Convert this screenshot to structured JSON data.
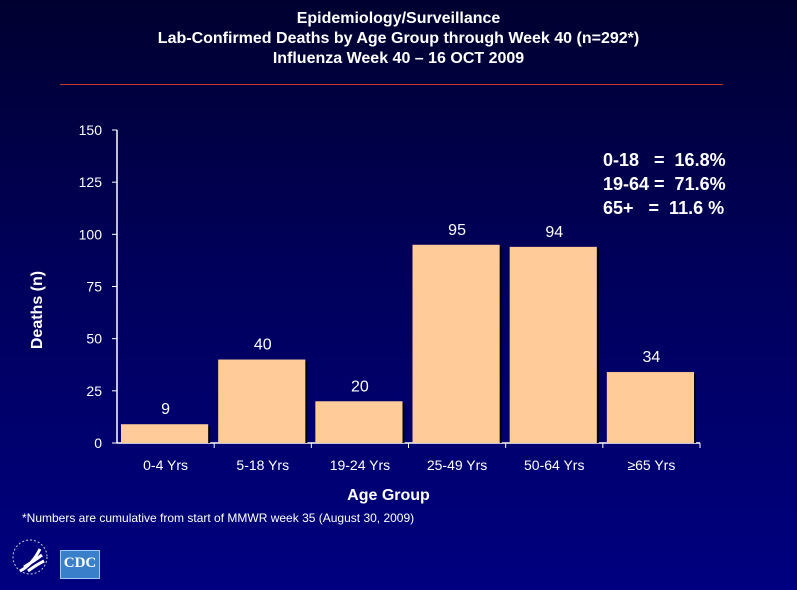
{
  "title": [
    "Epidemiology/Surveillance",
    "Lab-Confirmed Deaths by Age Group through Week 40 (n=292*)",
    "Influenza Week 40 – 16 OCT 2009"
  ],
  "stats": "0-18   =  16.8%\n19-64 =  71.6%\n65+   =  11.6 %",
  "footnote": "*Numbers are cumulative from start of MMWR week 35 (August 30, 2009)",
  "logo": "CDC",
  "colors": {
    "bar": "#ffcc99",
    "shadow": "#000000"
  },
  "chart_data": {
    "type": "bar",
    "title": "Lab-Confirmed Deaths by Age Group through Week 40 (n=292*)",
    "xlabel": "Age Group",
    "ylabel": "Deaths (n)",
    "categories": [
      "0-4 Yrs",
      "5-18 Yrs",
      "19-24 Yrs",
      "25-49 Yrs",
      "50-64 Yrs",
      "≥65 Yrs"
    ],
    "values": [
      9,
      40,
      20,
      95,
      94,
      34
    ],
    "ylim": [
      0,
      150
    ],
    "yticks": [
      0,
      25,
      50,
      75,
      100,
      125,
      150
    ],
    "grid": false
  }
}
